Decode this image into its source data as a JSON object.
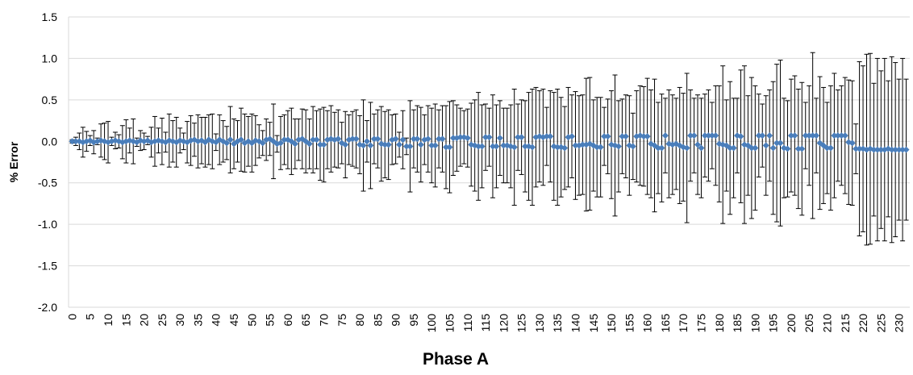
{
  "chart_data": {
    "type": "scatter",
    "x_label": "Phase A",
    "y_label": "% Error",
    "color": "#4a7ebb",
    "error_color": "#000000",
    "xlim": [
      -1,
      233
    ],
    "xticks": [
      0,
      5,
      10,
      15,
      20,
      25,
      30,
      35,
      40,
      45,
      50,
      55,
      60,
      65,
      70,
      75,
      80,
      85,
      90,
      95,
      100,
      105,
      110,
      115,
      120,
      125,
      130,
      135,
      140,
      145,
      150,
      155,
      160,
      165,
      170,
      175,
      180,
      185,
      190,
      195,
      200,
      205,
      210,
      215,
      220,
      225,
      230
    ],
    "ylim": [
      -2,
      1.5
    ],
    "yticks": [
      {
        "value": -2,
        "label": "-2.0"
      },
      -1.5,
      {
        "value": -1,
        "label": "-1.0"
      },
      -0.5,
      {
        "value": 0,
        "label": "0.0"
      },
      0.5,
      {
        "value": 1,
        "label": "1.0"
      },
      1.5
    ],
    "grid": true,
    "x": [
      0,
      1,
      2,
      3,
      4,
      5,
      6,
      7,
      8,
      9,
      10,
      11,
      12,
      13,
      14,
      15,
      16,
      17,
      18,
      19,
      20,
      21,
      22,
      23,
      24,
      25,
      26,
      27,
      28,
      29,
      30,
      31,
      32,
      33,
      34,
      35,
      36,
      37,
      38,
      39,
      40,
      41,
      42,
      43,
      44,
      45,
      46,
      47,
      48,
      49,
      50,
      51,
      52,
      53,
      54,
      55,
      56,
      57,
      58,
      59,
      60,
      61,
      62,
      63,
      64,
      65,
      66,
      67,
      68,
      69,
      70,
      71,
      72,
      73,
      74,
      75,
      76,
      77,
      78,
      79,
      80,
      81,
      82,
      83,
      84,
      85,
      86,
      87,
      88,
      89,
      90,
      91,
      92,
      93,
      94,
      95,
      96,
      97,
      98,
      99,
      100,
      101,
      102,
      103,
      104,
      105,
      106,
      107,
      108,
      109,
      110,
      111,
      112,
      113,
      114,
      115,
      116,
      117,
      118,
      119,
      120,
      121,
      122,
      123,
      124,
      125,
      126,
      127,
      128,
      129,
      130,
      131,
      132,
      133,
      134,
      135,
      136,
      137,
      138,
      139,
      140,
      141,
      142,
      143,
      144,
      145,
      146,
      147,
      148,
      149,
      150,
      151,
      152,
      153,
      154,
      155,
      156,
      157,
      158,
      159,
      160,
      161,
      162,
      163,
      164,
      165,
      166,
      167,
      168,
      169,
      170,
      171,
      172,
      173,
      174,
      175,
      176,
      177,
      178,
      179,
      180,
      181,
      182,
      183,
      184,
      185,
      186,
      187,
      188,
      189,
      190,
      191,
      192,
      193,
      194,
      195,
      196,
      197,
      198,
      199,
      200,
      201,
      202,
      203,
      204,
      205,
      206,
      207,
      208,
      209,
      210,
      211,
      212,
      213,
      214,
      215,
      216,
      217,
      218,
      219,
      220,
      221,
      222,
      223,
      224,
      225,
      226,
      227,
      228,
      229,
      230,
      231,
      232
    ],
    "values": [
      0,
      0,
      0,
      -0.01,
      0,
      0.01,
      -0.01,
      0,
      0.01,
      0,
      -0.01,
      0,
      0.01,
      0,
      -0.01,
      0,
      0.01,
      0,
      -0.01,
      0.01,
      0,
      0.01,
      -0.01,
      0,
      0.01,
      0,
      -0.01,
      0.01,
      0,
      -0.01,
      0.01,
      0,
      -0.01,
      0.01,
      0.02,
      0,
      0.01,
      -0.01,
      0.02,
      0,
      -0.01,
      0.02,
      0,
      -0.02,
      0.02,
      -0.03,
      0,
      0.02,
      -0.02,
      0,
      -0.02,
      0.01,
      0,
      -0.02,
      0.02,
      0.03,
      0,
      -0.03,
      -0.02,
      0.02,
      0.02,
      0,
      -0.03,
      0.02,
      0.03,
      0,
      -0.03,
      0.02,
      0.02,
      -0.04,
      -0.04,
      0.02,
      0.03,
      0.02,
      0.03,
      -0.02,
      -0.04,
      0.02,
      0.03,
      0.03,
      -0.04,
      -0.05,
      0,
      -0.05,
      0.03,
      0.03,
      -0.03,
      -0.04,
      -0.04,
      0.02,
      0.03,
      -0.04,
      0.02,
      -0.06,
      -0.06,
      0.03,
      0.03,
      -0.04,
      0.02,
      0.03,
      -0.05,
      -0.05,
      0.03,
      0.03,
      -0.07,
      -0.07,
      0.04,
      0.04,
      0.05,
      0.05,
      0.04,
      -0.04,
      -0.05,
      -0.06,
      -0.06,
      0.05,
      0.05,
      -0.06,
      -0.06,
      0.04,
      -0.05,
      -0.05,
      -0.06,
      -0.07,
      0.05,
      0.05,
      -0.06,
      -0.06,
      -0.07,
      0.05,
      0.06,
      0.05,
      0.06,
      0.06,
      -0.06,
      -0.07,
      -0.07,
      -0.08,
      0.05,
      0.06,
      -0.05,
      -0.05,
      -0.04,
      -0.04,
      -0.03,
      -0.05,
      -0.07,
      -0.07,
      0.06,
      0.06,
      -0.04,
      -0.05,
      -0.06,
      0.06,
      0.06,
      -0.05,
      -0.06,
      0.06,
      0.07,
      0.06,
      0.06,
      -0.03,
      -0.05,
      -0.08,
      -0.08,
      0.07,
      -0.03,
      -0.04,
      -0.03,
      -0.05,
      -0.07,
      -0.08,
      0.07,
      0.07,
      -0.04,
      -0.08,
      0.07,
      0.07,
      0.07,
      0.07,
      -0.03,
      -0.04,
      -0.05,
      -0.08,
      -0.08,
      0.07,
      0.06,
      -0.04,
      -0.05,
      -0.08,
      -0.08,
      0.07,
      0.07,
      -0.05,
      0.07,
      -0.08,
      -0.02,
      -0.02,
      -0.08,
      -0.09,
      0.07,
      0.07,
      -0.09,
      -0.09,
      0.07,
      0.07,
      0.07,
      0.07,
      -0.02,
      -0.05,
      -0.08,
      -0.08,
      0.07,
      0.07,
      0.07,
      0.07,
      -0.01,
      -0.02,
      -0.09,
      -0.09,
      -0.09,
      -0.1,
      -0.09,
      -0.1,
      -0.1,
      -0.1,
      -0.1,
      -0.09,
      -0.1,
      -0.1,
      -0.1,
      -0.1,
      -0.1
    ],
    "errors": [
      0.02,
      0.05,
      0.1,
      0.18,
      0.12,
      0.06,
      0.14,
      0.04,
      0.2,
      0.22,
      0.25,
      0.05,
      0.1,
      0.08,
      0.2,
      0.26,
      0.15,
      0.27,
      0.05,
      0.12,
      0.1,
      0.05,
      0.18,
      0.3,
      0.15,
      0.28,
      0.12,
      0.32,
      0.25,
      0.3,
      0.15,
      0.1,
      0.25,
      0.3,
      0.2,
      0.32,
      0.28,
      0.3,
      0.3,
      0.33,
      0.1,
      0.3,
      0.25,
      0.2,
      0.4,
      0.3,
      0.25,
      0.38,
      0.35,
      0.3,
      0.35,
      0.3,
      0.2,
      0.15,
      0.25,
      0.2,
      0.45,
      0.1,
      0.32,
      0.3,
      0.35,
      0.4,
      0.3,
      0.25,
      0.36,
      0.38,
      0.3,
      0.4,
      0.35,
      0.43,
      0.45,
      0.35,
      0.4,
      0.33,
      0.35,
      0.25,
      0.4,
      0.3,
      0.33,
      0.35,
      0.35,
      0.55,
      0.25,
      0.52,
      0.3,
      0.35,
      0.45,
      0.4,
      0.42,
      0.3,
      0.3,
      0.15,
      0.35,
      0.1,
      0.55,
      0.35,
      0.4,
      0.45,
      0.3,
      0.4,
      0.45,
      0.5,
      0.35,
      0.4,
      0.5,
      0.55,
      0.45,
      0.4,
      0.35,
      0.32,
      0.35,
      0.5,
      0.55,
      0.65,
      0.5,
      0.4,
      0.35,
      0.62,
      0.5,
      0.45,
      0.45,
      0.45,
      0.5,
      0.7,
      0.4,
      0.45,
      0.55,
      0.65,
      0.7,
      0.6,
      0.55,
      0.58,
      0.35,
      0.55,
      0.65,
      0.7,
      0.6,
      0.5,
      0.6,
      0.5,
      0.65,
      0.6,
      0.6,
      0.8,
      0.8,
      0.55,
      0.6,
      0.6,
      0.35,
      0.45,
      0.65,
      0.85,
      0.55,
      0.45,
      0.5,
      0.6,
      0.4,
      0.55,
      0.6,
      0.6,
      0.7,
      0.65,
      0.8,
      0.55,
      0.65,
      0.45,
      0.65,
      0.6,
      0.55,
      0.7,
      0.65,
      0.9,
      0.55,
      0.45,
      0.6,
      0.6,
      0.5,
      0.55,
      0.4,
      0.6,
      0.7,
      0.95,
      0.55,
      0.8,
      0.6,
      0.45,
      0.8,
      0.95,
      0.6,
      0.85,
      0.75,
      0.5,
      0.38,
      0.6,
      0.55,
      0.8,
      0.95,
      1.0,
      0.6,
      0.58,
      0.68,
      0.72,
      0.72,
      0.8,
      0.4,
      0.6,
      1.0,
      0.45,
      0.8,
      0.7,
      0.55,
      0.75,
      0.75,
      0.55,
      0.6,
      0.7,
      0.75,
      0.75,
      0.3,
      1.05,
      1.0,
      1.15,
      1.15,
      0.8,
      1.1,
      0.95,
      1.1,
      0.82,
      1.12,
      1.05,
      0.85,
      1.1,
      0.85
    ]
  }
}
